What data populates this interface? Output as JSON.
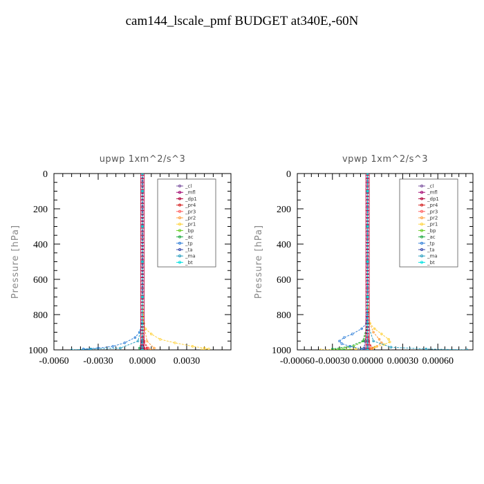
{
  "title": "cam144_lscale_pmf  BUDGET at340E,-60N",
  "legend_labels": [
    "_cl",
    "_mfl",
    "_dp1",
    "_pr4",
    "_pr3",
    "_pr2",
    "_pr1",
    "_bp",
    "_ac",
    "_tp",
    "_ta",
    "_ma",
    "_bt"
  ],
  "colors": {
    "_cl": "#7a4f9e",
    "_mfl": "#a0006e",
    "_dp1": "#b0003a",
    "_pr4": "#d42020",
    "_pr3": "#ff5a5a",
    "_pr2": "#ffa040",
    "_pr1": "#ffd23c",
    "_bp": "#66cc22",
    "_ac": "#22aa44",
    "_tp": "#2f7fd8",
    "_ta": "#3344aa",
    "_ma": "#2aa0c0",
    "_bt": "#00e0e0"
  },
  "chart_data": [
    {
      "type": "line",
      "title": "upwp   1xm^2/s^3",
      "ylabel": "Pressure  [hPa]",
      "xlim": [
        -0.006,
        0.006
      ],
      "ylim": [
        1000,
        0
      ],
      "xticks": [
        "-0.0060",
        "-0.0030",
        "0.0000",
        "0.0030"
      ],
      "xtick_values": [
        -0.006,
        -0.003,
        0.0,
        0.003
      ],
      "yticks": [
        "0",
        "200",
        "400",
        "600",
        "800",
        "1000"
      ],
      "ytick_values": [
        0,
        200,
        400,
        600,
        800,
        1000
      ],
      "legend": "top-right",
      "series": [
        {
          "name": "_cl",
          "y": [
            0,
            100,
            300,
            500,
            700,
            850,
            950,
            1000
          ],
          "x": [
            0,
            0,
            0,
            0,
            0,
            0,
            0,
            0
          ]
        },
        {
          "name": "_mfl",
          "y": [
            0,
            100,
            300,
            500,
            700,
            850,
            950,
            1000
          ],
          "x": [
            0,
            0,
            0,
            0,
            0,
            0,
            0,
            0
          ]
        },
        {
          "name": "_dp1",
          "y": [
            0,
            100,
            300,
            500,
            700,
            850,
            950,
            990,
            1000
          ],
          "x": [
            0,
            0,
            0,
            0,
            0,
            0,
            5e-05,
            0.0001,
            0
          ]
        },
        {
          "name": "_pr4",
          "y": [
            0,
            100,
            300,
            500,
            700,
            850,
            950,
            990,
            1000
          ],
          "x": [
            0,
            0,
            0,
            0,
            0,
            0,
            0.0001,
            0.0003,
            0.0002
          ]
        },
        {
          "name": "_pr3",
          "y": [
            0,
            100,
            300,
            500,
            700,
            850,
            950,
            990,
            1000
          ],
          "x": [
            0,
            0,
            0,
            0,
            0,
            0,
            0.0001,
            0.0004,
            0.0002
          ]
        },
        {
          "name": "_pr2",
          "y": [
            0,
            100,
            300,
            500,
            700,
            850,
            950,
            990,
            1000
          ],
          "x": [
            0,
            0,
            0,
            0,
            0,
            0.0001,
            0.0003,
            0.0008,
            0.0005
          ]
        },
        {
          "name": "_pr1",
          "y": [
            0,
            100,
            300,
            500,
            700,
            850,
            880,
            910,
            940,
            960,
            980,
            990,
            995,
            1000
          ],
          "x": [
            0,
            0,
            0,
            0,
            0,
            5e-05,
            0.0002,
            0.0006,
            0.0012,
            0.0022,
            0.0034,
            0.0042,
            0.0045,
            0.004
          ]
        },
        {
          "name": "_bp",
          "y": [
            0,
            100,
            300,
            500,
            700,
            850,
            950,
            990,
            1000
          ],
          "x": [
            0,
            0,
            0,
            0,
            0,
            0,
            -5e-05,
            -0.0001,
            0
          ]
        },
        {
          "name": "_ac",
          "y": [
            0,
            100,
            300,
            500,
            700,
            850,
            950,
            990,
            1000
          ],
          "x": [
            0,
            0,
            0,
            0,
            0,
            0,
            -5e-05,
            -0.0002,
            -0.0001
          ]
        },
        {
          "name": "_tp",
          "y": [
            0,
            100,
            300,
            500,
            700,
            850,
            900,
            930,
            960,
            980,
            990,
            995,
            1000
          ],
          "x": [
            0,
            0,
            0,
            0,
            0,
            -5e-05,
            -0.0002,
            -0.0005,
            -0.0012,
            -0.002,
            -0.003,
            -0.004,
            -0.0035
          ]
        },
        {
          "name": "_ta",
          "y": [
            0,
            100,
            300,
            500,
            700,
            850,
            950,
            990,
            1000
          ],
          "x": [
            0,
            0,
            0,
            0,
            0,
            0,
            -5e-05,
            -0.0001,
            0
          ]
        },
        {
          "name": "_ma",
          "y": [
            0,
            100,
            300,
            500,
            700,
            850,
            950,
            990,
            995,
            1000
          ],
          "x": [
            0,
            0,
            0,
            0,
            0,
            0,
            -0.0003,
            -0.0015,
            -0.0035,
            -0.0048
          ]
        },
        {
          "name": "_bt",
          "y": [
            0,
            100,
            300,
            500,
            700,
            850,
            950,
            990,
            1000
          ],
          "x": [
            0,
            0,
            0,
            0,
            0,
            0,
            0,
            0,
            0
          ]
        }
      ]
    },
    {
      "type": "line",
      "title": "vpwp   1xm^2/s^3",
      "ylabel": "Pressure  [hPa]",
      "xlim": [
        -0.0006,
        0.0009
      ],
      "ylim": [
        1000,
        0
      ],
      "xticks": [
        "-0.00060",
        "-0.00030",
        "0.00000",
        "0.00030",
        "0.00060"
      ],
      "xtick_values": [
        -0.0006,
        -0.0003,
        0.0,
        0.0003,
        0.0006
      ],
      "yticks": [
        "0",
        "200",
        "400",
        "600",
        "800",
        "1000"
      ],
      "ytick_values": [
        0,
        200,
        400,
        600,
        800,
        1000
      ],
      "legend": "top-right",
      "series": [
        {
          "name": "_cl",
          "y": [
            0,
            100,
            300,
            500,
            700,
            850,
            950,
            1000
          ],
          "x": [
            0,
            0,
            0,
            0,
            0,
            0,
            0,
            0
          ]
        },
        {
          "name": "_mfl",
          "y": [
            0,
            100,
            300,
            500,
            700,
            850,
            950,
            1000
          ],
          "x": [
            0,
            0,
            0,
            0,
            0,
            0,
            0,
            0
          ]
        },
        {
          "name": "_dp1",
          "y": [
            0,
            100,
            300,
            500,
            700,
            850,
            950,
            990,
            1000
          ],
          "x": [
            0,
            0,
            0,
            0,
            0,
            0,
            1e-05,
            3e-05,
            0
          ]
        },
        {
          "name": "_pr4",
          "y": [
            0,
            100,
            300,
            500,
            700,
            850,
            950,
            990,
            1000
          ],
          "x": [
            0,
            0,
            0,
            0,
            0,
            0,
            1e-05,
            4e-05,
            2e-05
          ]
        },
        {
          "name": "_pr3",
          "y": [
            0,
            100,
            300,
            500,
            700,
            850,
            950,
            990,
            1000
          ],
          "x": [
            0,
            0,
            0,
            0,
            0,
            0,
            1e-05,
            3e-05,
            1e-05
          ]
        },
        {
          "name": "_pr2",
          "y": [
            0,
            100,
            300,
            500,
            700,
            850,
            900,
            940,
            960,
            980,
            995,
            1000
          ],
          "x": [
            0,
            0,
            0,
            0,
            0,
            2e-05,
            5e-05,
            0.0001,
            0.00012,
            8e-05,
            4e-05,
            2e-05
          ]
        },
        {
          "name": "_pr1",
          "y": [
            0,
            100,
            300,
            500,
            700,
            850,
            880,
            910,
            940,
            955,
            970,
            985,
            995,
            1000
          ],
          "x": [
            0,
            0,
            0,
            0,
            0,
            2e-05,
            6e-05,
            0.00012,
            0.00018,
            0.00019,
            0.00014,
            6e-05,
            -0.0001,
            -0.0004
          ]
        },
        {
          "name": "_bp",
          "y": [
            0,
            100,
            300,
            500,
            700,
            850,
            950,
            980,
            995,
            1000
          ],
          "x": [
            0,
            0,
            0,
            0,
            0,
            0,
            -3e-05,
            -0.00012,
            -0.00025,
            -0.00015
          ]
        },
        {
          "name": "_ac",
          "y": [
            0,
            100,
            300,
            500,
            700,
            850,
            950,
            980,
            995,
            1000
          ],
          "x": [
            0,
            0,
            0,
            0,
            0,
            0,
            -4e-05,
            -0.00015,
            -0.0003,
            -0.0002
          ]
        },
        {
          "name": "_tp",
          "y": [
            0,
            100,
            300,
            500,
            700,
            850,
            880,
            910,
            930,
            950,
            965,
            980,
            995,
            1000
          ],
          "x": [
            0,
            0,
            0,
            0,
            0,
            -1e-05,
            -5e-05,
            -0.00013,
            -0.0002,
            -0.00024,
            -0.00022,
            -0.00015,
            -5e-05,
            0
          ]
        },
        {
          "name": "_ta",
          "y": [
            0,
            100,
            300,
            500,
            700,
            850,
            950,
            990,
            1000
          ],
          "x": [
            0,
            0,
            0,
            0,
            0,
            0,
            -2e-05,
            -3e-05,
            0
          ]
        },
        {
          "name": "_ma",
          "y": [
            0,
            100,
            300,
            500,
            700,
            850,
            950,
            985,
            995,
            1000
          ],
          "x": [
            0,
            0,
            0,
            0,
            0,
            0,
            5e-05,
            0.0002,
            0.0005,
            0.00085
          ]
        },
        {
          "name": "_bt",
          "y": [
            0,
            100,
            300,
            500,
            700,
            850,
            950,
            990,
            1000
          ],
          "x": [
            0,
            0,
            0,
            0,
            0,
            0,
            0,
            0,
            0
          ]
        }
      ]
    }
  ]
}
